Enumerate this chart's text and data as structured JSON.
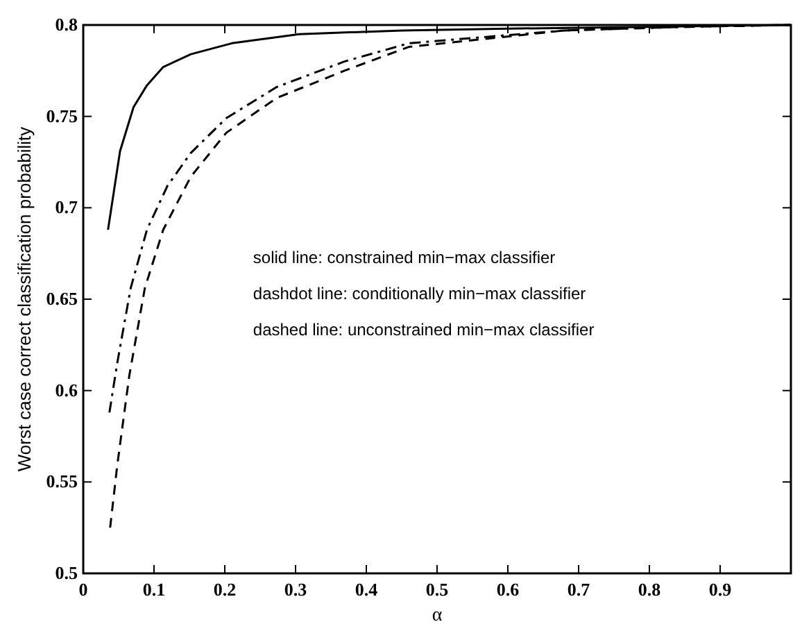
{
  "chart_data": {
    "type": "line",
    "xlabel": "α",
    "ylabel": "Worst case correct classification probability",
    "xlim": [
      0,
      1
    ],
    "ylim": [
      0.5,
      0.8
    ],
    "xticks": [
      0,
      0.1,
      0.2,
      0.3,
      0.4,
      0.5,
      0.6,
      0.7,
      0.8,
      0.9
    ],
    "yticks": [
      0.5,
      0.55,
      0.6,
      0.65,
      0.7,
      0.75,
      0.8
    ],
    "grid": false,
    "annotations": [
      "solid line: constrained min−max classifier",
      "dashdot line: conditionally min−max classifier",
      "dashed line: unconstrained min−max classifier"
    ],
    "series": [
      {
        "color": "#000000",
        "line_style": "solid",
        "x": [
          0.035,
          0.052,
          0.071,
          0.09,
          0.113,
          0.152,
          0.21,
          0.305,
          0.45,
          0.6,
          0.8,
          1.0
        ],
        "values": [
          0.688,
          0.731,
          0.755,
          0.767,
          0.777,
          0.784,
          0.79,
          0.795,
          0.797,
          0.798,
          0.799,
          0.8
        ]
      },
      {
        "color": "#000000",
        "line_style": "dashdot",
        "x": [
          0.037,
          0.048,
          0.067,
          0.09,
          0.119,
          0.152,
          0.202,
          0.273,
          0.369,
          0.46,
          0.68,
          0.85,
          1.0
        ],
        "values": [
          0.588,
          0.615,
          0.656,
          0.688,
          0.712,
          0.73,
          0.749,
          0.766,
          0.78,
          0.79,
          0.797,
          0.799,
          0.8
        ]
      },
      {
        "color": "#000000",
        "line_style": "dashed",
        "x": [
          0.038,
          0.048,
          0.065,
          0.087,
          0.113,
          0.152,
          0.202,
          0.273,
          0.369,
          0.46,
          0.68,
          0.85,
          1.0
        ],
        "values": [
          0.525,
          0.559,
          0.608,
          0.656,
          0.688,
          0.717,
          0.741,
          0.76,
          0.775,
          0.788,
          0.797,
          0.799,
          0.8
        ]
      }
    ]
  }
}
